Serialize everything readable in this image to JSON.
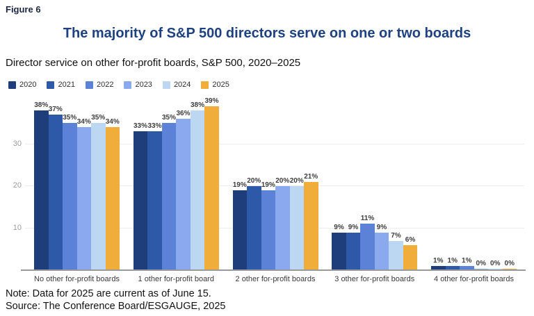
{
  "figure_label": "Figure 6",
  "title": "The majority of S&P 500 directors serve on one or two boards",
  "subtitle": "Director service on other for-profit boards, S&P 500, 2020–2025",
  "note": "Note: Data for 2025 are current as of June 15.",
  "source": "Source: The Conference Board/ESGAUGE, 2025",
  "colors": {
    "title_text": "#1e4180",
    "figure_label_text": "#1c2742",
    "gridline": "#ececec",
    "axis_line": "#9a9a9a",
    "tick_text": "#9a9a9a",
    "data_label_text": "#3d3d3d"
  },
  "chart_data": {
    "type": "bar",
    "title": "The majority of S&P 500 directors serve on one or two boards",
    "subtitle": "Director service on other for-profit boards, S&P 500, 2020–2025",
    "unit": "%",
    "grid": "horizontal",
    "legend_position": "top-left",
    "ylim": [
      0,
      40
    ],
    "yticks": [
      10,
      20,
      30
    ],
    "categories": [
      "No other for-profit boards",
      "1 other for-profit board",
      "2 other for-profit boards",
      "3 other for-profit boards",
      "4 other for-profit boards"
    ],
    "series": [
      {
        "name": "2020",
        "color": "#1e3d7b",
        "values": [
          38,
          33,
          19,
          9,
          1
        ]
      },
      {
        "name": "2021",
        "color": "#2e59a8",
        "values": [
          37,
          33,
          20,
          9,
          1
        ]
      },
      {
        "name": "2022",
        "color": "#5b82d6",
        "values": [
          35,
          35,
          19,
          11,
          1
        ]
      },
      {
        "name": "2023",
        "color": "#8aa9ee",
        "values": [
          34,
          36,
          20,
          9,
          0
        ]
      },
      {
        "name": "2024",
        "color": "#bcd7f2",
        "values": [
          35,
          38,
          20,
          7,
          0
        ]
      },
      {
        "name": "2025",
        "color": "#f0ad3a",
        "values": [
          34,
          39,
          21,
          6,
          0
        ]
      }
    ]
  }
}
